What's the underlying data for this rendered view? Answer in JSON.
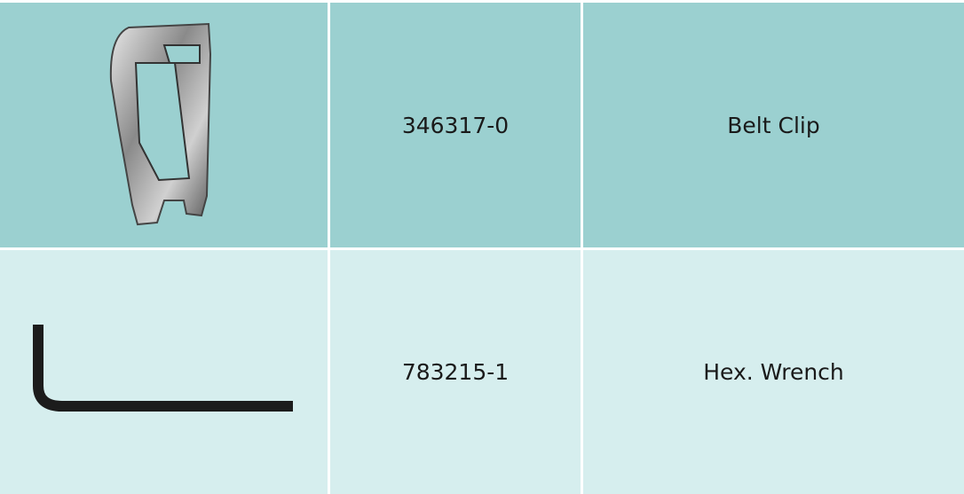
{
  "table": {
    "rows": [
      {
        "part_number": "346317-0",
        "description": "Belt Clip"
      },
      {
        "part_number": "783215-1",
        "description": "Hex. Wrench"
      }
    ]
  }
}
